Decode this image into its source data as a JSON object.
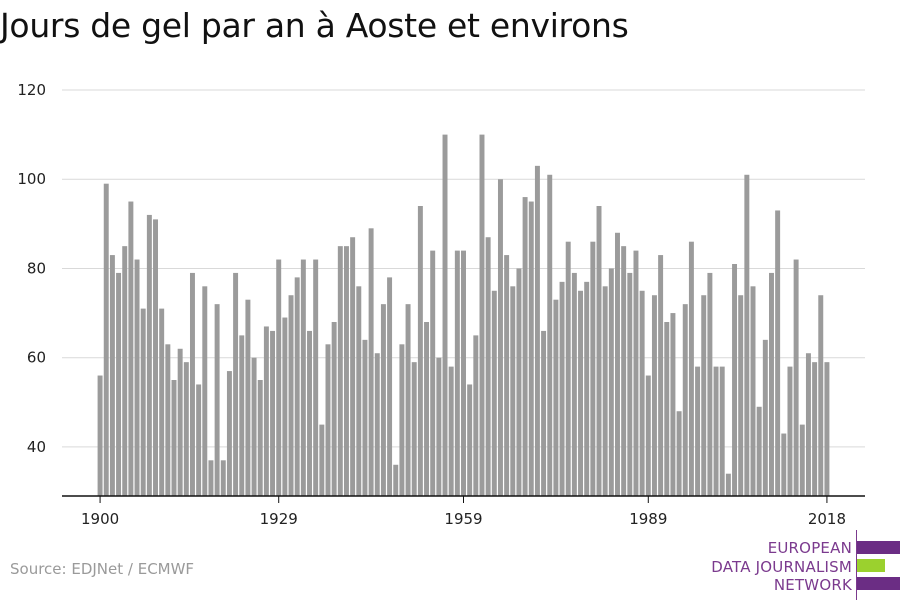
{
  "title": "Jours de gel par an à Aoste et environs",
  "source": "Source: EDJNet / ECMWF",
  "logo": {
    "lines": [
      "EUROPEAN",
      "DATA JOURNALISM",
      "NETWORK"
    ],
    "colors": {
      "purple": "#6b2d84",
      "green": "#9bd12e",
      "text": "#7b3a8e"
    }
  },
  "colors": {
    "bar": "#9b9b9b",
    "grid": "#d9d9d9",
    "axis": "#111111"
  },
  "chart_data": {
    "type": "bar",
    "title": "Jours de gel par an à Aoste et environs",
    "xlabel": "",
    "ylabel": "",
    "ylim": [
      29,
      120
    ],
    "yticks": [
      40,
      60,
      80,
      100,
      120
    ],
    "xticks": [
      1900,
      1929,
      1959,
      1989,
      2018
    ],
    "grid": true,
    "x": [
      1900,
      1901,
      1902,
      1903,
      1904,
      1905,
      1906,
      1907,
      1908,
      1909,
      1910,
      1911,
      1912,
      1913,
      1914,
      1915,
      1916,
      1917,
      1918,
      1919,
      1920,
      1921,
      1922,
      1923,
      1924,
      1925,
      1926,
      1927,
      1928,
      1929,
      1930,
      1931,
      1932,
      1933,
      1934,
      1935,
      1936,
      1937,
      1938,
      1939,
      1940,
      1941,
      1942,
      1943,
      1944,
      1945,
      1946,
      1947,
      1948,
      1949,
      1950,
      1951,
      1952,
      1953,
      1954,
      1955,
      1956,
      1957,
      1958,
      1959,
      1960,
      1961,
      1962,
      1963,
      1964,
      1965,
      1966,
      1967,
      1968,
      1969,
      1970,
      1971,
      1972,
      1973,
      1974,
      1975,
      1976,
      1977,
      1978,
      1979,
      1980,
      1981,
      1982,
      1983,
      1984,
      1985,
      1986,
      1987,
      1988,
      1989,
      1990,
      1991,
      1992,
      1993,
      1994,
      1995,
      1996,
      1997,
      1998,
      1999,
      2000,
      2001,
      2002,
      2003,
      2004,
      2005,
      2006,
      2007,
      2008,
      2009,
      2010,
      2011,
      2012,
      2013,
      2014,
      2015,
      2016,
      2017,
      2018
    ],
    "values": [
      56,
      99,
      83,
      79,
      85,
      95,
      82,
      71,
      92,
      91,
      71,
      63,
      55,
      62,
      59,
      79,
      54,
      76,
      37,
      72,
      37,
      57,
      79,
      65,
      73,
      60,
      55,
      67,
      66,
      82,
      69,
      74,
      78,
      82,
      66,
      82,
      45,
      63,
      68,
      85,
      85,
      87,
      76,
      64,
      89,
      61,
      72,
      78,
      36,
      63,
      72,
      59,
      94,
      68,
      84,
      60,
      110,
      58,
      84,
      84,
      54,
      65,
      110,
      87,
      75,
      100,
      83,
      76,
      80,
      96,
      95,
      103,
      66,
      101,
      73,
      77,
      86,
      79,
      75,
      77,
      86,
      94,
      76,
      80,
      88,
      85,
      79,
      84,
      75,
      56,
      74,
      83,
      68,
      70,
      48,
      72,
      86,
      58,
      74,
      79,
      58,
      58,
      34,
      81,
      74,
      101,
      76,
      49,
      64,
      79,
      93,
      43,
      58,
      82,
      45,
      61,
      59,
      74,
      59
    ]
  }
}
